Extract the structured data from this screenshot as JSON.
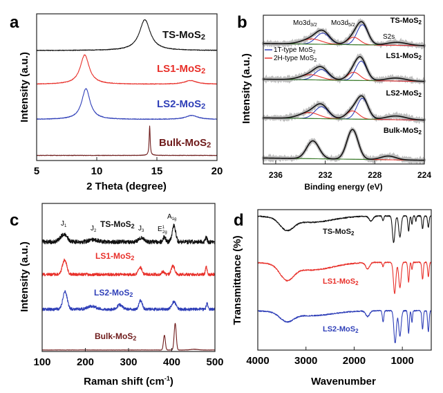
{
  "panels": {
    "a": {
      "label": "a",
      "ylabel": "Intensity (a.u.)",
      "xlabel": "2 Theta (degree)"
    },
    "b": {
      "label": "b",
      "ylabel": "Intensity (a.u.)",
      "xlabel": "Binding energy (eV)",
      "annotations": {
        "mo3d32": "Mo3d",
        "mo3d32_sub": "3/2",
        "mo3d52": "Mo3d",
        "mo3d52_sub": "5/2",
        "s2s": "S2s"
      },
      "legend": [
        {
          "label": "1T-type MoS",
          "sub": "2",
          "color": "#2f3fb8"
        },
        {
          "label": "2H-type MoS",
          "sub": "2",
          "color": "#e8302a"
        }
      ]
    },
    "c": {
      "label": "c",
      "ylabel": "Intensity (a.u.)",
      "xlabel": "Raman shift (cm",
      "xlabel_sup": "-1",
      "xlabel_end": ")",
      "annotations": {
        "j1": "J",
        "j1_sub": "1",
        "j2": "J",
        "j2_sub": "2",
        "j3": "J",
        "j3_sub": "3",
        "e2g": "E",
        "e2g_sup": "1",
        "e2g_sub": "2g",
        "a1g": "A",
        "a1g_sub": "1g"
      }
    },
    "d": {
      "label": "d",
      "ylabel": "Transmittance (%)",
      "xlabel": "Wavenumber"
    }
  },
  "series_labels": {
    "ts": {
      "name": "TS-MoS",
      "sub": "2"
    },
    "ls1": {
      "name": "LS1-MoS",
      "sub": "2"
    },
    "ls2": {
      "name": "LS2-MoS",
      "sub": "2"
    },
    "bulk": {
      "name": "Bulk-MoS",
      "sub": "2"
    }
  },
  "colors": {
    "ts": "#111111",
    "ls1": "#e8302a",
    "ls2": "#2f3fb8",
    "bulk": "#6e1a1a",
    "s2s": "#3a7a2a",
    "data_points": "#bdbdbd"
  },
  "chart_data": [
    {
      "panel": "a",
      "type": "line",
      "title": "",
      "xlabel": "2 Theta (degree)",
      "ylabel": "Intensity (a.u.)",
      "xlim": [
        5,
        20
      ],
      "ylim": [
        0,
        10
      ],
      "xticks": [
        5,
        10,
        15,
        20
      ],
      "peak_shape": "lorentz",
      "series": [
        {
          "name": "TS-MoS2",
          "color": "#111111",
          "baseline": 7.5,
          "noise": 0.02,
          "peaks": [
            [
              14.0,
              2.1,
              0.55
            ]
          ]
        },
        {
          "name": "LS1-MoS2",
          "color": "#e8302a",
          "baseline": 5.2,
          "noise": 0.02,
          "peaks": [
            [
              9.0,
              2.0,
              0.45
            ],
            [
              17.8,
              0.25,
              0.6
            ]
          ]
        },
        {
          "name": "LS2-MoS2",
          "color": "#2f3fb8",
          "baseline": 2.8,
          "noise": 0.02,
          "peaks": [
            [
              9.1,
              2.1,
              0.42
            ],
            [
              17.9,
              0.27,
              0.6
            ]
          ]
        },
        {
          "name": "Bulk-MoS2",
          "color": "#6e1a1a",
          "baseline": 0.35,
          "noise": 0.015,
          "peaks": [
            [
              14.4,
              2.0,
              0.05
            ]
          ]
        }
      ]
    },
    {
      "panel": "b",
      "type": "line",
      "title": "",
      "xlabel": "Binding energy (eV)",
      "ylabel": "Intensity (a.u.)",
      "xlim": [
        237,
        224
      ],
      "ylim": [
        0,
        10
      ],
      "xticks": [
        236,
        232,
        228,
        224
      ],
      "peak_shape": "gauss",
      "show_data_points": true,
      "series": [
        {
          "name": "TS-MoS2",
          "color": "#111111",
          "baseline": 8.1,
          "slope": -0.15,
          "components": [
            {
              "name": "1T-type MoS2",
              "color": "#2f3fb8",
              "peaks": [
                [
                  229.0,
                  1.35,
                  0.45
                ],
                [
                  232.2,
                  0.75,
                  0.55
                ]
              ]
            },
            {
              "name": "2H-type MoS2",
              "color": "#e8302a",
              "peaks": [
                [
                  229.7,
                  0.5,
                  0.5
                ],
                [
                  233.1,
                  0.35,
                  0.8
                ]
              ]
            },
            {
              "name": "S2s",
              "color": "#3a7a2a",
              "peaks": [
                [
                  226.2,
                  0.2,
                  0.8
                ]
              ]
            }
          ]
        },
        {
          "name": "LS1-MoS2",
          "color": "#111111",
          "baseline": 5.7,
          "slope": -0.15,
          "components": [
            {
              "name": "1T-type MoS2",
              "color": "#2f3fb8",
              "peaks": [
                [
                  229.1,
                  1.3,
                  0.45
                ],
                [
                  232.3,
                  0.7,
                  0.55
                ]
              ]
            },
            {
              "name": "2H-type MoS2",
              "color": "#e8302a",
              "peaks": [
                [
                  229.7,
                  0.55,
                  0.5
                ],
                [
                  233.2,
                  0.35,
                  0.8
                ]
              ]
            },
            {
              "name": "S2s",
              "color": "#3a7a2a",
              "peaks": [
                [
                  226.3,
                  0.2,
                  0.8
                ]
              ]
            }
          ]
        },
        {
          "name": "LS2-MoS2",
          "color": "#111111",
          "baseline": 3.1,
          "slope": -0.15,
          "components": [
            {
              "name": "1T-type MoS2",
              "color": "#2f3fb8",
              "peaks": [
                [
                  229.0,
                  1.4,
                  0.45
                ],
                [
                  232.3,
                  0.8,
                  0.55
                ]
              ]
            },
            {
              "name": "2H-type MoS2",
              "color": "#e8302a",
              "peaks": [
                [
                  229.8,
                  0.55,
                  0.5
                ],
                [
                  233.3,
                  0.4,
                  0.8
                ]
              ]
            },
            {
              "name": "S2s",
              "color": "#3a7a2a",
              "peaks": [
                [
                  226.3,
                  0.25,
                  0.8
                ]
              ]
            }
          ]
        },
        {
          "name": "Bulk-MoS2",
          "color": "#111111",
          "baseline": 0.4,
          "slope": -0.15,
          "components": [
            {
              "name": "2H-type MoS2",
              "color": "#e8302a",
              "peaks": [
                [
                  229.8,
                  2.0,
                  0.45
                ],
                [
                  233.0,
                  1.2,
                  0.5
                ]
              ]
            },
            {
              "name": "S2s",
              "color": "#3a7a2a",
              "peaks": [
                [
                  226.9,
                  0.25,
                  0.6
                ]
              ]
            }
          ]
        }
      ]
    },
    {
      "panel": "c",
      "type": "line",
      "title": "",
      "xlabel": "Raman shift (cm-1)",
      "ylabel": "Intensity (a.u.)",
      "xlim": [
        100,
        500
      ],
      "ylim": [
        0,
        10
      ],
      "xticks": [
        100,
        200,
        300,
        400,
        500
      ],
      "peak_shape": "gauss",
      "series": [
        {
          "name": "TS-MoS2",
          "color": "#111111",
          "baseline": 7.4,
          "noise": 0.14,
          "peaks": [
            [
              150,
              0.5,
              8
            ],
            [
              218,
              0.15,
              10
            ],
            [
              330,
              0.3,
              6
            ],
            [
              383,
              0.35,
              3
            ],
            [
              405,
              1.1,
              4
            ],
            [
              480,
              0.3,
              2
            ]
          ]
        },
        {
          "name": "LS1-MoS2",
          "color": "#e8302a",
          "baseline": 5.2,
          "noise": 0.1,
          "peaks": [
            [
              152,
              1.0,
              5
            ],
            [
              327,
              0.5,
              4
            ],
            [
              380,
              0.2,
              3
            ],
            [
              403,
              0.6,
              4
            ],
            [
              480,
              0.5,
              2
            ]
          ]
        },
        {
          "name": "LS2-MoS2",
          "color": "#2f3fb8",
          "baseline": 2.85,
          "noise": 0.1,
          "peaks": [
            [
              153,
              1.2,
              5
            ],
            [
              215,
              0.2,
              10
            ],
            [
              280,
              0.3,
              6
            ],
            [
              328,
              0.6,
              4
            ],
            [
              405,
              0.5,
              5
            ],
            [
              482,
              0.4,
              2
            ]
          ]
        },
        {
          "name": "Bulk-MoS2",
          "color": "#6e1a1a",
          "baseline": 0.1,
          "noise": 0.01,
          "peaks": [
            [
              383,
              1.0,
              2.2
            ],
            [
              408,
              1.8,
              2.4
            ],
            [
              452,
              0.05,
              8
            ]
          ]
        }
      ]
    },
    {
      "panel": "d",
      "type": "line",
      "title": "",
      "xlabel": "Wavenumber",
      "ylabel": "Transmittance (%)",
      "xlim": [
        4000,
        400
      ],
      "ylim": [
        0,
        10
      ],
      "xticks": [
        4000,
        3000,
        2000,
        1000
      ],
      "peak_shape": "gauss",
      "series": [
        {
          "name": "TS-MoS2",
          "color": "#111111",
          "baseline": 9.55,
          "noise": 0.04,
          "peaks": [
            [
              3400,
              -0.8,
              140
            ],
            [
              2900,
              -0.45,
              450
            ],
            [
              1650,
              -0.35,
              40
            ],
            [
              1400,
              -0.35,
              15
            ],
            [
              1180,
              -1.9,
              25
            ],
            [
              1050,
              -1.5,
              25
            ],
            [
              870,
              -1.1,
              15
            ],
            [
              800,
              -0.6,
              12
            ],
            [
              720,
              -0.4,
              10
            ],
            [
              580,
              -0.9,
              15
            ],
            [
              460,
              -0.8,
              15
            ]
          ]
        },
        {
          "name": "LS1-MoS2",
          "color": "#e8302a",
          "baseline": 6.25,
          "noise": 0.04,
          "peaks": [
            [
              3400,
              -1.0,
              140
            ],
            [
              2900,
              -0.55,
              450
            ],
            [
              1720,
              -0.45,
              40
            ],
            [
              1400,
              -0.3,
              15
            ],
            [
              1160,
              -2.2,
              25
            ],
            [
              1050,
              -1.8,
              25
            ],
            [
              870,
              -1.4,
              15
            ],
            [
              800,
              -0.5,
              12
            ],
            [
              580,
              -1.2,
              15
            ],
            [
              460,
              -1.0,
              15
            ]
          ]
        },
        {
          "name": "LS2-MoS2",
          "color": "#2f3fb8",
          "baseline": 2.8,
          "noise": 0.04,
          "peaks": [
            [
              3400,
              -0.6,
              140
            ],
            [
              2900,
              -0.35,
              450
            ],
            [
              1720,
              -0.4,
              40
            ],
            [
              1400,
              -0.8,
              15
            ],
            [
              1150,
              -2.3,
              25
            ],
            [
              1050,
              -1.8,
              25
            ],
            [
              870,
              -1.6,
              15
            ],
            [
              800,
              -0.8,
              12
            ],
            [
              580,
              -1.3,
              15
            ],
            [
              460,
              -1.5,
              15
            ]
          ]
        }
      ]
    }
  ]
}
